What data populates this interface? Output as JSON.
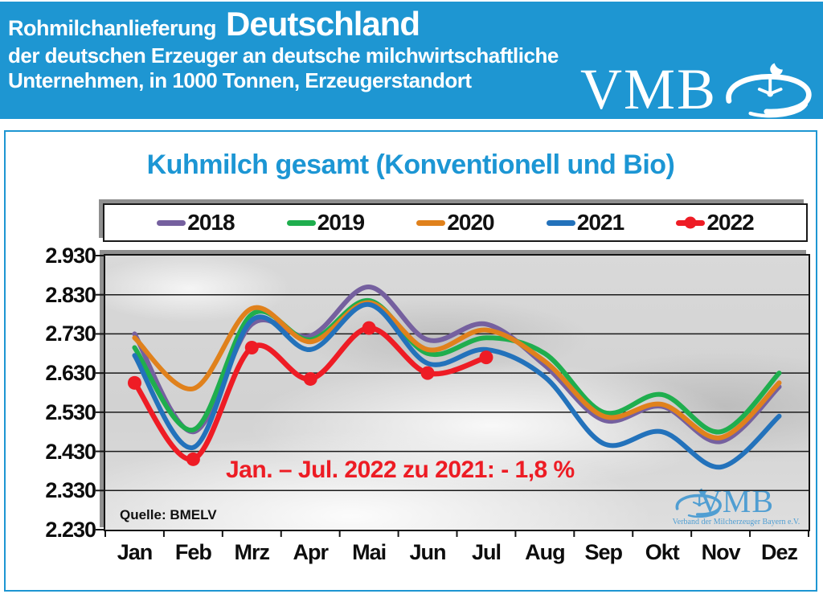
{
  "header": {
    "background": "#1e96d2",
    "title_small": "Rohmilchanlieferung",
    "title_large": "Deutschland",
    "subtitle_line1": "der deutschen Erzeuger an deutsche milchwirtschaftliche",
    "subtitle_line2": "Unternehmen, in 1000 Tonnen, Erzeugerstandort",
    "logo_text": "VMB"
  },
  "chart_data": {
    "type": "line",
    "title": "Kuhmilch gesamt (Konventionell und Bio)",
    "title_color": "#1c96d4",
    "unit": "in 1000 Tonnen",
    "categories": [
      "Jan",
      "Feb",
      "Mrz",
      "Apr",
      "Mai",
      "Jun",
      "Jul",
      "Aug",
      "Sep",
      "Okt",
      "Nov",
      "Dez"
    ],
    "ylim": [
      2230,
      2930
    ],
    "ytick_step": 100,
    "yticks": [
      2930,
      2830,
      2730,
      2630,
      2530,
      2430,
      2330,
      2230
    ],
    "ytick_labels": [
      "2.930",
      "2.830",
      "2.730",
      "2.630",
      "2.530",
      "2.430",
      "2.330",
      "2.230"
    ],
    "grid": true,
    "legend_position": "top",
    "series": [
      {
        "name": "2018",
        "color": "#75609f",
        "marker": "none",
        "values": [
          2730,
          2480,
          2755,
          2725,
          2850,
          2715,
          2755,
          2650,
          2510,
          2545,
          2455,
          2595
        ]
      },
      {
        "name": "2019",
        "color": "#1fae4e",
        "marker": "none",
        "values": [
          2695,
          2485,
          2780,
          2715,
          2815,
          2680,
          2720,
          2680,
          2530,
          2575,
          2480,
          2630
        ]
      },
      {
        "name": "2020",
        "color": "#e0811c",
        "marker": "none",
        "values": [
          2720,
          2590,
          2795,
          2710,
          2810,
          2690,
          2740,
          2660,
          2520,
          2550,
          2465,
          2605
        ]
      },
      {
        "name": "2021",
        "color": "#2372bb",
        "marker": "none",
        "values": [
          2675,
          2440,
          2765,
          2690,
          2805,
          2655,
          2690,
          2620,
          2450,
          2480,
          2390,
          2520
        ]
      },
      {
        "name": "2022",
        "color": "#ee1c25",
        "marker": "circle",
        "values": [
          2605,
          2410,
          2695,
          2615,
          2745,
          2630,
          2670,
          null,
          null,
          null,
          null,
          null
        ]
      }
    ],
    "annotation": "Jan. – Jul. 2022 zu 2021: - 1,8 %",
    "annotation_color": "#ed1c24",
    "source": "Quelle: BMELV",
    "watermark": {
      "text": "VMB",
      "subtext": "Verband der Milcherzeuger Bayern e.V."
    }
  }
}
